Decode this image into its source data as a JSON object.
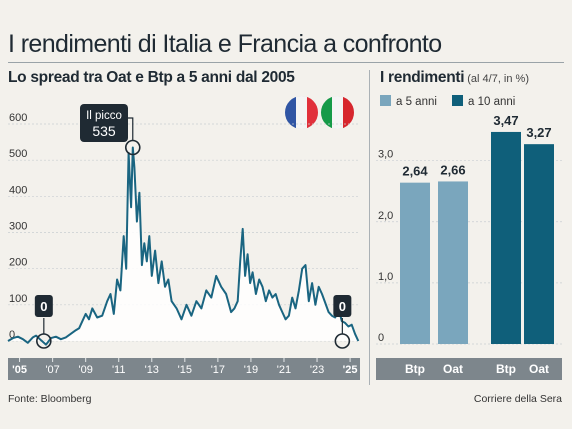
{
  "title": "I rendimenti di Italia e Francia a confronto",
  "colors": {
    "line": "#1a6581",
    "light_bar": "#7aa6bd",
    "dark_bar": "#0f5f7a",
    "axis_band": "#7d868c",
    "callout": "#1f2a33"
  },
  "flags": [
    {
      "name": "france-flag-icon",
      "stripes": [
        "#2f55a4",
        "#f4f4f4",
        "#e1303b"
      ]
    },
    {
      "name": "italy-flag-icon",
      "stripes": [
        "#159a48",
        "#f4f4f4",
        "#d7262d"
      ]
    }
  ],
  "footer": {
    "source": "Fonte: Bloomberg",
    "credit": "Corriere della Sera"
  },
  "chart_data": [
    {
      "type": "area",
      "title": "Lo spread tra Oat e Btp a 5 anni dal 2005",
      "xlabel": "",
      "ylabel": "",
      "ylim": [
        -20,
        600
      ],
      "xlim": [
        2004.3,
        2025.6
      ],
      "y_ticks": [
        "0",
        "100",
        "200",
        "300",
        "400",
        "500",
        "600"
      ],
      "x_ticks": [
        {
          "label": "'05",
          "year": 2005
        },
        {
          "label": "'07",
          "year": 2007
        },
        {
          "label": "'09",
          "year": 2009
        },
        {
          "label": "'11",
          "year": 2011
        },
        {
          "label": "'13",
          "year": 2013
        },
        {
          "label": "'15",
          "year": 2015
        },
        {
          "label": "'17",
          "year": 2017
        },
        {
          "label": "'19",
          "year": 2019
        },
        {
          "label": "'21",
          "year": 2021
        },
        {
          "label": "'23",
          "year": 2023
        },
        {
          "label": "'25",
          "year": 2025
        }
      ],
      "grid": true,
      "annotations": [
        {
          "label": "0",
          "x": 2004.35,
          "y": 0
        },
        {
          "label": "Il picco",
          "value": "535",
          "x": 2011.85,
          "y": 535
        },
        {
          "label": "0",
          "x": 2025.5,
          "y": 0
        }
      ],
      "x": [
        2004.3,
        2004.6,
        2004.9,
        2005.2,
        2005.5,
        2005.8,
        2006.0,
        2006.3,
        2006.6,
        2006.9,
        2007.2,
        2007.5,
        2007.8,
        2008.1,
        2008.4,
        2008.6,
        2008.8,
        2009.0,
        2009.2,
        2009.4,
        2009.7,
        2010.0,
        2010.3,
        2010.5,
        2010.7,
        2010.9,
        2011.1,
        2011.3,
        2011.45,
        2011.6,
        2011.75,
        2011.85,
        2011.95,
        2012.1,
        2012.25,
        2012.4,
        2012.55,
        2012.7,
        2012.85,
        2013.0,
        2013.2,
        2013.4,
        2013.6,
        2013.8,
        2014.0,
        2014.2,
        2014.5,
        2014.8,
        2015.1,
        2015.4,
        2015.7,
        2016.0,
        2016.3,
        2016.6,
        2016.9,
        2017.2,
        2017.5,
        2017.8,
        2018.0,
        2018.2,
        2018.35,
        2018.5,
        2018.65,
        2018.8,
        2018.95,
        2019.1,
        2019.3,
        2019.5,
        2019.7,
        2019.9,
        2020.1,
        2020.3,
        2020.5,
        2020.7,
        2020.9,
        2021.1,
        2021.3,
        2021.5,
        2021.7,
        2021.9,
        2022.1,
        2022.3,
        2022.5,
        2022.7,
        2022.9,
        2023.1,
        2023.3,
        2023.5,
        2023.7,
        2023.9,
        2024.1,
        2024.3,
        2024.5,
        2024.7,
        2024.9,
        2025.1,
        2025.3,
        2025.5
      ],
      "series": [
        {
          "values": [
            0,
            8,
            12,
            5,
            -5,
            10,
            15,
            2,
            -10,
            8,
            12,
            5,
            10,
            20,
            30,
            35,
            55,
            75,
            60,
            90,
            65,
            70,
            110,
            130,
            75,
            170,
            140,
            290,
            200,
            520,
            370,
            535,
            480,
            330,
            410,
            210,
            270,
            220,
            290,
            180,
            250,
            160,
            220,
            150,
            170,
            110,
            90,
            60,
            100,
            70,
            110,
            90,
            140,
            120,
            180,
            150,
            130,
            80,
            90,
            110,
            220,
            310,
            180,
            240,
            160,
            190,
            130,
            170,
            150,
            110,
            140,
            120,
            130,
            100,
            80,
            60,
            70,
            120,
            90,
            140,
            200,
            210,
            110,
            160,
            100,
            150,
            130,
            105,
            80,
            70,
            65,
            90,
            55,
            50,
            40,
            45,
            20,
            0
          ]
        }
      ]
    },
    {
      "type": "bar",
      "title": "I rendimenti",
      "subtitle": "(al 4/7, in %)",
      "categories": [
        "Btp",
        "Oat",
        "Btp",
        "Oat"
      ],
      "series": [
        {
          "name": "a 5 anni",
          "values": [
            2.64,
            2.66,
            null,
            null
          ],
          "labels": [
            "2,64",
            "2,66",
            "",
            ""
          ]
        },
        {
          "name": "a 10 anni",
          "values": [
            null,
            null,
            3.47,
            3.27
          ],
          "labels": [
            "",
            "",
            "3,47",
            "3,27"
          ]
        }
      ],
      "ylim": [
        0,
        3.6
      ],
      "y_ticks": [
        "0",
        "1,0",
        "2,0",
        "3,0"
      ],
      "grid": true
    }
  ]
}
